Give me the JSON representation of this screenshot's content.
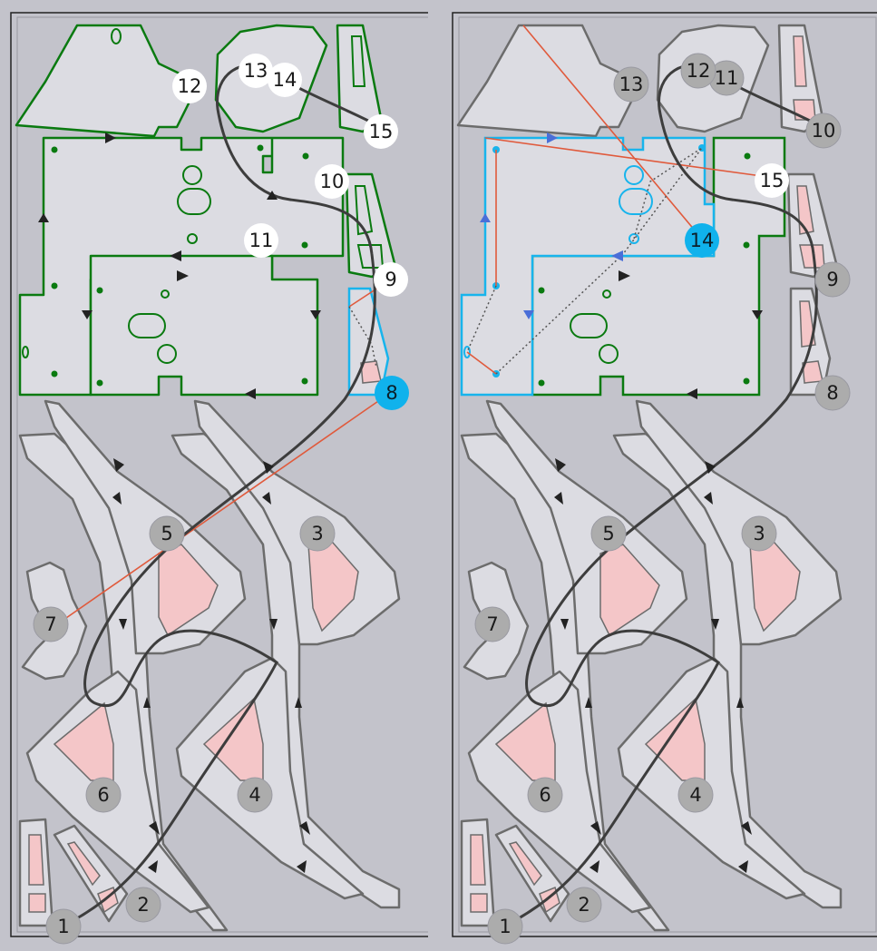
{
  "colors": {
    "background": "#c3c3cb",
    "sheet": "#dcdce2",
    "active_cut": "#0a7a10",
    "inactive_cut": "#6c6c6c",
    "current_part": "#18b4ec",
    "travel_path": "#3d3d3d",
    "rapid_line": "#e05a3c",
    "hole_fill": "#f4c6c8",
    "active_marker_fill": "#ffffff",
    "inactive_marker_fill": "#acacac",
    "current_marker_fill": "#10b2ec"
  },
  "panels": [
    {
      "title": "",
      "current": "8",
      "markers": [
        {
          "label": "1",
          "state": "inactive"
        },
        {
          "label": "2",
          "state": "inactive"
        },
        {
          "label": "3",
          "state": "inactive"
        },
        {
          "label": "4",
          "state": "inactive"
        },
        {
          "label": "5",
          "state": "inactive"
        },
        {
          "label": "6",
          "state": "inactive"
        },
        {
          "label": "7",
          "state": "inactive"
        },
        {
          "label": "8",
          "state": "current"
        },
        {
          "label": "9",
          "state": "active"
        },
        {
          "label": "10",
          "state": "active"
        },
        {
          "label": "11",
          "state": "active"
        },
        {
          "label": "12",
          "state": "active"
        },
        {
          "label": "13",
          "state": "active"
        },
        {
          "label": "14",
          "state": "active"
        },
        {
          "label": "15",
          "state": "active"
        }
      ]
    },
    {
      "title": "",
      "current": "14",
      "markers": [
        {
          "label": "1",
          "state": "inactive"
        },
        {
          "label": "2",
          "state": "inactive"
        },
        {
          "label": "3",
          "state": "inactive"
        },
        {
          "label": "4",
          "state": "inactive"
        },
        {
          "label": "5",
          "state": "inactive"
        },
        {
          "label": "6",
          "state": "inactive"
        },
        {
          "label": "7",
          "state": "inactive"
        },
        {
          "label": "8",
          "state": "inactive"
        },
        {
          "label": "9",
          "state": "inactive"
        },
        {
          "label": "10",
          "state": "inactive"
        },
        {
          "label": "11",
          "state": "inactive"
        },
        {
          "label": "12",
          "state": "inactive"
        },
        {
          "label": "13",
          "state": "inactive"
        },
        {
          "label": "14",
          "state": "current"
        },
        {
          "label": "15",
          "state": "active"
        }
      ]
    }
  ]
}
